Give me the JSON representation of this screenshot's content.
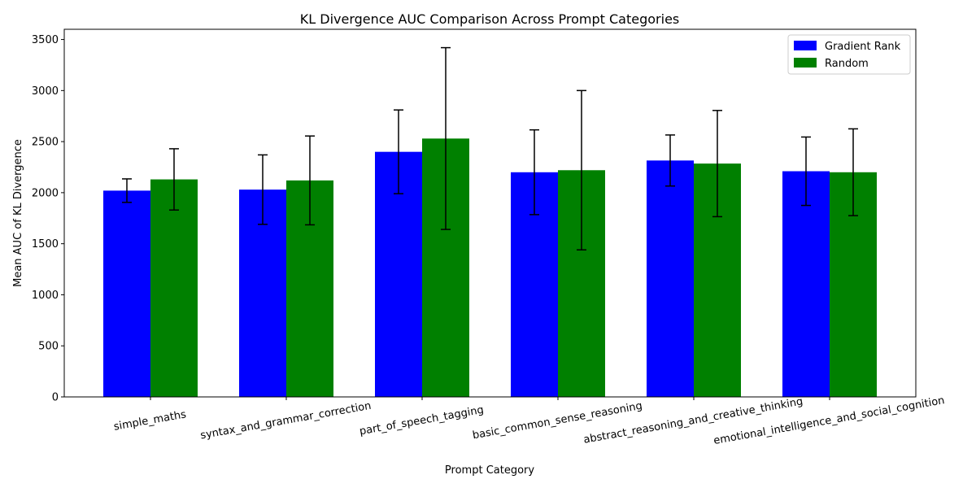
{
  "chart_data": {
    "type": "bar",
    "title": "KL Divergence AUC Comparison Across Prompt Categories",
    "xlabel": "Prompt Category",
    "ylabel": "Mean AUC of KL Divergence",
    "ylim": [
      0,
      3600
    ],
    "yticks": [
      0,
      500,
      1000,
      1500,
      2000,
      2500,
      3000,
      3500
    ],
    "grid": false,
    "legend_position": "top-right",
    "categories": [
      "simple_maths",
      "syntax_and_grammar_correction",
      "part_of_speech_tagging",
      "basic_common_sense_reasoning",
      "abstract_reasoning_and_creative_thinking",
      "emotional_intelligence_and_social_cognition"
    ],
    "series": [
      {
        "name": "Gradient Rank",
        "color": "#0000ff",
        "values": [
          2020,
          2030,
          2400,
          2200,
          2315,
          2210
        ],
        "error": [
          115,
          340,
          410,
          415,
          250,
          335
        ]
      },
      {
        "name": "Random",
        "color": "#008000",
        "values": [
          2130,
          2120,
          2530,
          2220,
          2285,
          2200
        ],
        "error": [
          300,
          435,
          890,
          780,
          520,
          425
        ]
      }
    ]
  }
}
